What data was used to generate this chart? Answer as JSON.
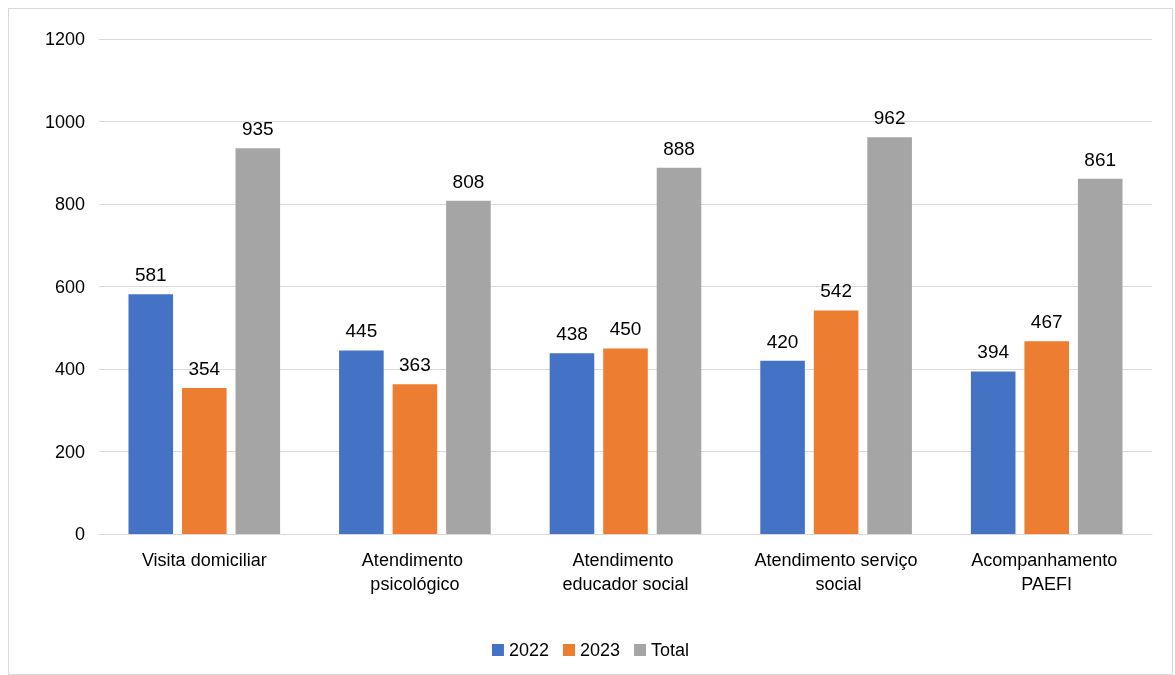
{
  "chart_data": {
    "type": "bar",
    "categories": [
      "Visita domiciliar",
      "Atendimento psicológico",
      "Atendimento educador social",
      "Atendimento serviço social",
      "Acompanhamento PAEFI"
    ],
    "series": [
      {
        "name": "2022",
        "color": "#4472c4",
        "values": [
          581,
          445,
          438,
          420,
          394
        ]
      },
      {
        "name": "2023",
        "color": "#ed7d31",
        "values": [
          354,
          363,
          450,
          542,
          467
        ]
      },
      {
        "name": "Total",
        "color": "#a5a5a5",
        "values": [
          935,
          808,
          888,
          962,
          861
        ]
      }
    ],
    "ylim": [
      0,
      1200
    ],
    "yticks": [
      0,
      200,
      400,
      600,
      800,
      1000,
      1200
    ],
    "grid": "y",
    "legend": "bottom",
    "data_labels": true
  }
}
